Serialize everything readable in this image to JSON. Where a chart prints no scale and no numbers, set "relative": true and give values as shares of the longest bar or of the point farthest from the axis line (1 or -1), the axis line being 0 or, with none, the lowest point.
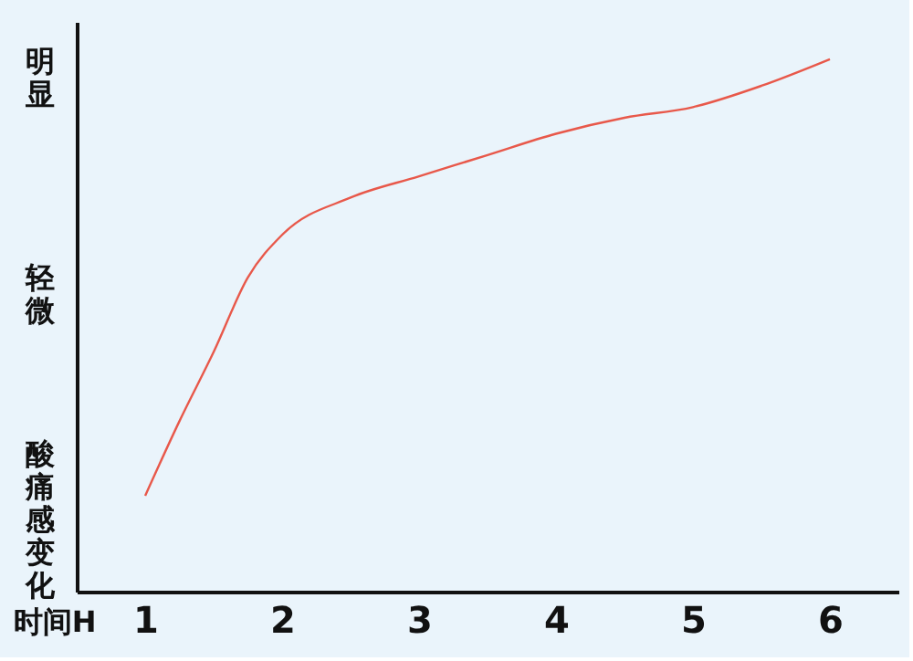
{
  "chart_data": {
    "type": "line",
    "relative": true,
    "xlabel": "时间H",
    "ylabel": "酸痛感变化",
    "annotations": [
      "明显",
      "轻微"
    ],
    "x": [
      1,
      1.25,
      1.5,
      1.75,
      2,
      2.5,
      3,
      3.5,
      4,
      4.5,
      5,
      5.5,
      6
    ],
    "series": [
      {
        "color": "#e8584a",
        "values": [
          0.18,
          0.32,
          0.45,
          0.59,
          0.67,
          0.74,
          0.78,
          0.82,
          0.86,
          0.89,
          0.91,
          0.95,
          1
        ]
      }
    ],
    "xlim": [
      0.5,
      6.5
    ],
    "xticks": [
      1,
      2,
      3,
      4,
      5,
      6
    ],
    "grid": false,
    "marker": "none",
    "line_style": "solid"
  }
}
